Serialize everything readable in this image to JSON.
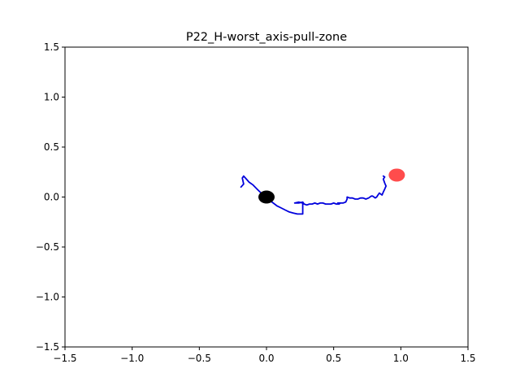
{
  "chart_data": {
    "type": "line",
    "title": "P22_H-worst_axis-pull-zone",
    "xlabel": "",
    "ylabel": "",
    "xlim": [
      -1.5,
      1.5
    ],
    "ylim": [
      -1.5,
      1.5
    ],
    "x_ticks": [
      -1.5,
      -1.0,
      -0.5,
      0.0,
      0.5,
      1.0,
      1.5
    ],
    "x_tick_labels": [
      "−1.5",
      "−1.0",
      "−0.5",
      "0.0",
      "0.5",
      "1.0",
      "1.5"
    ],
    "y_ticks": [
      1.5,
      1.0,
      0.5,
      0.0,
      -0.5,
      -1.0,
      -1.5
    ],
    "y_tick_labels": [
      "1.5",
      "1.0",
      "0.5",
      "0.0",
      "−0.5",
      "−1.0",
      "−1.5"
    ],
    "grid": false,
    "series": [
      {
        "color": "#0000dd",
        "x": [
          -0.19,
          -0.17,
          -0.18,
          -0.17,
          -0.15,
          -0.13,
          -0.1,
          -0.07,
          -0.04,
          -0.01,
          0.02,
          0.05,
          0.08,
          0.11,
          0.14,
          0.17,
          0.2,
          0.23,
          0.27,
          0.27,
          0.27,
          0.24,
          0.21,
          0.24,
          0.27,
          0.28,
          0.3,
          0.32,
          0.34,
          0.36,
          0.38,
          0.4,
          0.42,
          0.44,
          0.46,
          0.48,
          0.5,
          0.52,
          0.54,
          0.55,
          0.53,
          0.55,
          0.57,
          0.59,
          0.6,
          0.6,
          0.62,
          0.64,
          0.66,
          0.68,
          0.7,
          0.72,
          0.74,
          0.76,
          0.78,
          0.79,
          0.8,
          0.81,
          0.82,
          0.83,
          0.84,
          0.85,
          0.86,
          0.87,
          0.88,
          0.89,
          0.88,
          0.87,
          0.88,
          0.87
        ],
        "y": [
          0.1,
          0.13,
          0.19,
          0.21,
          0.18,
          0.15,
          0.12,
          0.08,
          0.04,
          0.0,
          -0.03,
          -0.06,
          -0.09,
          -0.11,
          -0.13,
          -0.15,
          -0.16,
          -0.17,
          -0.17,
          -0.12,
          -0.06,
          -0.05,
          -0.06,
          -0.06,
          -0.05,
          -0.07,
          -0.08,
          -0.07,
          -0.07,
          -0.06,
          -0.07,
          -0.06,
          -0.06,
          -0.07,
          -0.07,
          -0.07,
          -0.06,
          -0.07,
          -0.07,
          -0.06,
          -0.06,
          -0.06,
          -0.06,
          -0.05,
          -0.02,
          0.0,
          -0.01,
          -0.01,
          -0.02,
          -0.02,
          -0.01,
          -0.01,
          -0.02,
          -0.01,
          0.01,
          0.01,
          0.0,
          -0.01,
          0.0,
          0.02,
          0.04,
          0.03,
          0.02,
          0.05,
          0.08,
          0.11,
          0.14,
          0.18,
          0.2,
          0.21
        ]
      }
    ],
    "markers": [
      {
        "x": 0.0,
        "y": 0.0,
        "color": "#000000",
        "opacity": 1.0
      },
      {
        "x": 0.97,
        "y": 0.22,
        "color": "#ff0000",
        "opacity": 0.7
      }
    ]
  }
}
